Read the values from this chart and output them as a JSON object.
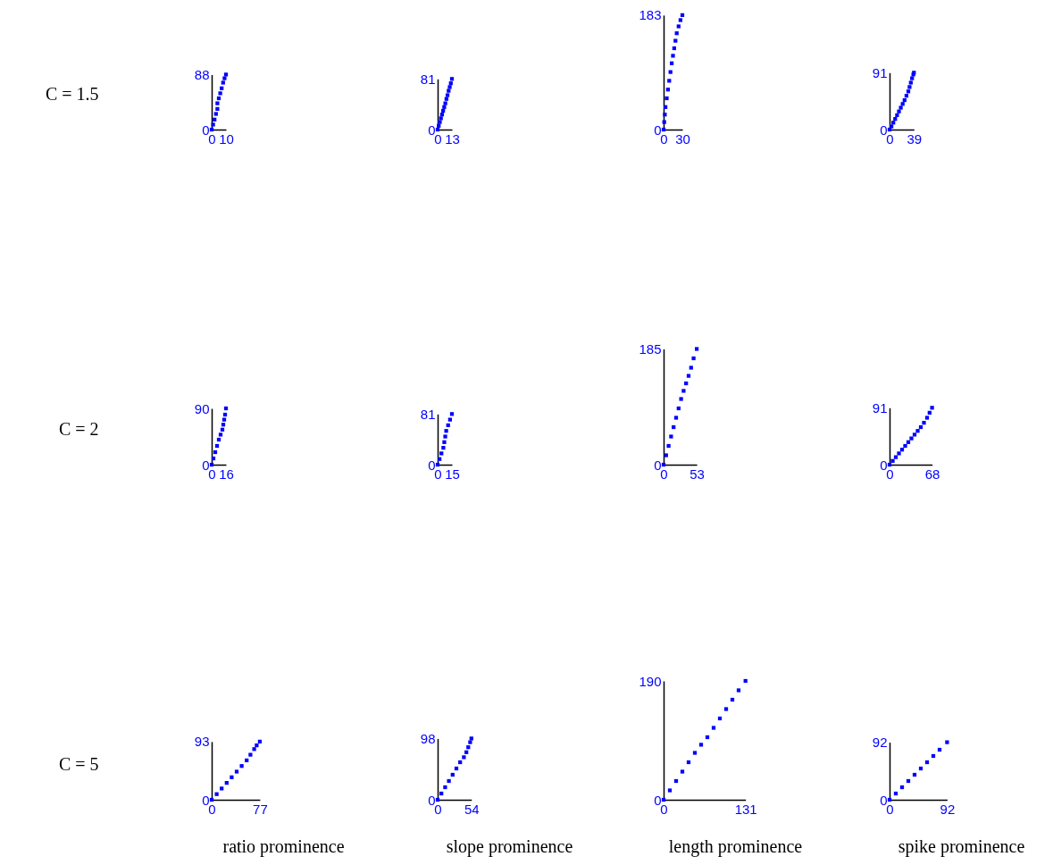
{
  "chart_data": [
    {
      "type": "scatter",
      "ylabel": "C = 1.5",
      "x": [
        0,
        1,
        2,
        3,
        4,
        4,
        5,
        6,
        7,
        8,
        9,
        10
      ],
      "values": [
        0,
        8,
        16,
        25,
        33,
        42,
        50,
        58,
        66,
        75,
        82,
        88
      ],
      "color": "#0000ff",
      "marker": "square",
      "xlim": [
        0,
        10
      ],
      "ylim": [
        0,
        88
      ],
      "xticks": [
        0,
        10
      ],
      "yticks": [
        0,
        88
      ]
    },
    {
      "type": "scatter",
      "x": [
        0,
        1,
        2,
        3,
        4,
        5,
        6,
        7,
        8,
        9,
        10,
        11,
        12,
        13
      ],
      "values": [
        0,
        6,
        12,
        18,
        24,
        30,
        36,
        42,
        49,
        55,
        62,
        68,
        74,
        81
      ],
      "color": "#0000ff",
      "marker": "square",
      "xlim": [
        0,
        13
      ],
      "ylim": [
        0,
        81
      ],
      "xticks": [
        0,
        13
      ],
      "yticks": [
        0,
        81
      ]
    },
    {
      "type": "scatter",
      "x": [
        0,
        1,
        2,
        3,
        5,
        7,
        9,
        11,
        13,
        15,
        17,
        19,
        21,
        24,
        27,
        30
      ],
      "values": [
        0,
        12,
        24,
        36,
        50,
        64,
        78,
        92,
        106,
        118,
        130,
        142,
        154,
        165,
        175,
        183
      ],
      "color": "#0000ff",
      "marker": "square",
      "xlim": [
        0,
        30
      ],
      "ylim": [
        0,
        183
      ],
      "xticks": [
        0,
        30
      ],
      "yticks": [
        0,
        183
      ]
    },
    {
      "type": "scatter",
      "x": [
        0,
        3,
        6,
        9,
        12,
        15,
        18,
        21,
        24,
        27,
        30,
        32,
        34,
        36,
        38,
        39
      ],
      "values": [
        0,
        5,
        11,
        17,
        23,
        29,
        35,
        41,
        47,
        54,
        61,
        68,
        75,
        82,
        88,
        91
      ],
      "color": "#0000ff",
      "marker": "square",
      "xlim": [
        0,
        39
      ],
      "ylim": [
        0,
        91
      ],
      "xticks": [
        0,
        39
      ],
      "yticks": [
        0,
        91
      ]
    },
    {
      "type": "scatter",
      "ylabel": "C = 2",
      "x": [
        0,
        2,
        4,
        6,
        8,
        10,
        12,
        13,
        14,
        15,
        16
      ],
      "values": [
        0,
        10,
        20,
        30,
        40,
        48,
        56,
        64,
        72,
        80,
        90
      ],
      "color": "#0000ff",
      "marker": "square",
      "xlim": [
        0,
        16
      ],
      "ylim": [
        0,
        90
      ],
      "xticks": [
        0,
        16
      ],
      "yticks": [
        0,
        90
      ]
    },
    {
      "type": "scatter",
      "x": [
        0,
        2,
        4,
        6,
        7,
        8,
        9,
        11,
        13,
        15
      ],
      "values": [
        0,
        9,
        18,
        27,
        36,
        45,
        54,
        63,
        72,
        81
      ],
      "color": "#0000ff",
      "marker": "square",
      "xlim": [
        0,
        15
      ],
      "ylim": [
        0,
        81
      ],
      "xticks": [
        0,
        15
      ],
      "yticks": [
        0,
        81
      ]
    },
    {
      "type": "scatter",
      "x": [
        0,
        4,
        8,
        12,
        16,
        20,
        24,
        28,
        32,
        36,
        40,
        44,
        48,
        53
      ],
      "values": [
        0,
        15,
        30,
        45,
        60,
        75,
        90,
        105,
        118,
        130,
        142,
        155,
        170,
        185
      ],
      "color": "#0000ff",
      "marker": "square",
      "xlim": [
        0,
        53
      ],
      "ylim": [
        0,
        185
      ],
      "xticks": [
        0,
        53
      ],
      "yticks": [
        0,
        185
      ]
    },
    {
      "type": "scatter",
      "x": [
        0,
        5,
        10,
        15,
        20,
        25,
        30,
        35,
        40,
        45,
        50,
        55,
        60,
        64,
        68
      ],
      "values": [
        0,
        6,
        12,
        18,
        24,
        30,
        36,
        42,
        48,
        54,
        60,
        67,
        75,
        83,
        91
      ],
      "color": "#0000ff",
      "marker": "square",
      "xlim": [
        0,
        68
      ],
      "ylim": [
        0,
        91
      ],
      "xticks": [
        0,
        68
      ],
      "yticks": [
        0,
        91
      ]
    },
    {
      "type": "scatter",
      "ylabel": "C = 5",
      "xlabel": "ratio prominence",
      "x": [
        0,
        8,
        16,
        24,
        32,
        40,
        48,
        56,
        62,
        68,
        72,
        77
      ],
      "values": [
        0,
        9,
        18,
        27,
        36,
        45,
        54,
        63,
        72,
        81,
        87,
        93
      ],
      "color": "#0000ff",
      "marker": "square",
      "xlim": [
        0,
        77
      ],
      "ylim": [
        0,
        93
      ],
      "xticks": [
        0,
        77
      ],
      "yticks": [
        0,
        93
      ]
    },
    {
      "type": "scatter",
      "xlabel": "slope prominence",
      "x": [
        0,
        6,
        12,
        18,
        24,
        30,
        36,
        42,
        46,
        49,
        52,
        54
      ],
      "values": [
        0,
        10,
        20,
        30,
        40,
        50,
        60,
        68,
        76,
        84,
        92,
        98
      ],
      "color": "#0000ff",
      "marker": "square",
      "xlim": [
        0,
        54
      ],
      "ylim": [
        0,
        98
      ],
      "xticks": [
        0,
        54
      ],
      "yticks": [
        0,
        98
      ]
    },
    {
      "type": "scatter",
      "xlabel": "length prominence",
      "x": [
        0,
        10,
        20,
        30,
        40,
        50,
        60,
        70,
        80,
        90,
        100,
        110,
        120,
        131
      ],
      "values": [
        0,
        15,
        30,
        45,
        60,
        75,
        88,
        100,
        115,
        130,
        145,
        160,
        175,
        190
      ],
      "color": "#0000ff",
      "marker": "square",
      "xlim": [
        0,
        131
      ],
      "ylim": [
        0,
        190
      ],
      "xticks": [
        0,
        131
      ],
      "yticks": [
        0,
        190
      ]
    },
    {
      "type": "scatter",
      "xlabel": "spike prominence",
      "x": [
        0,
        10,
        20,
        30,
        40,
        50,
        60,
        70,
        80,
        92
      ],
      "values": [
        0,
        10,
        20,
        30,
        40,
        50,
        60,
        70,
        80,
        92
      ],
      "color": "#0000ff",
      "marker": "square",
      "xlim": [
        0,
        92
      ],
      "ylim": [
        0,
        92
      ],
      "xticks": [
        0,
        92
      ],
      "yticks": [
        0,
        92
      ]
    }
  ]
}
